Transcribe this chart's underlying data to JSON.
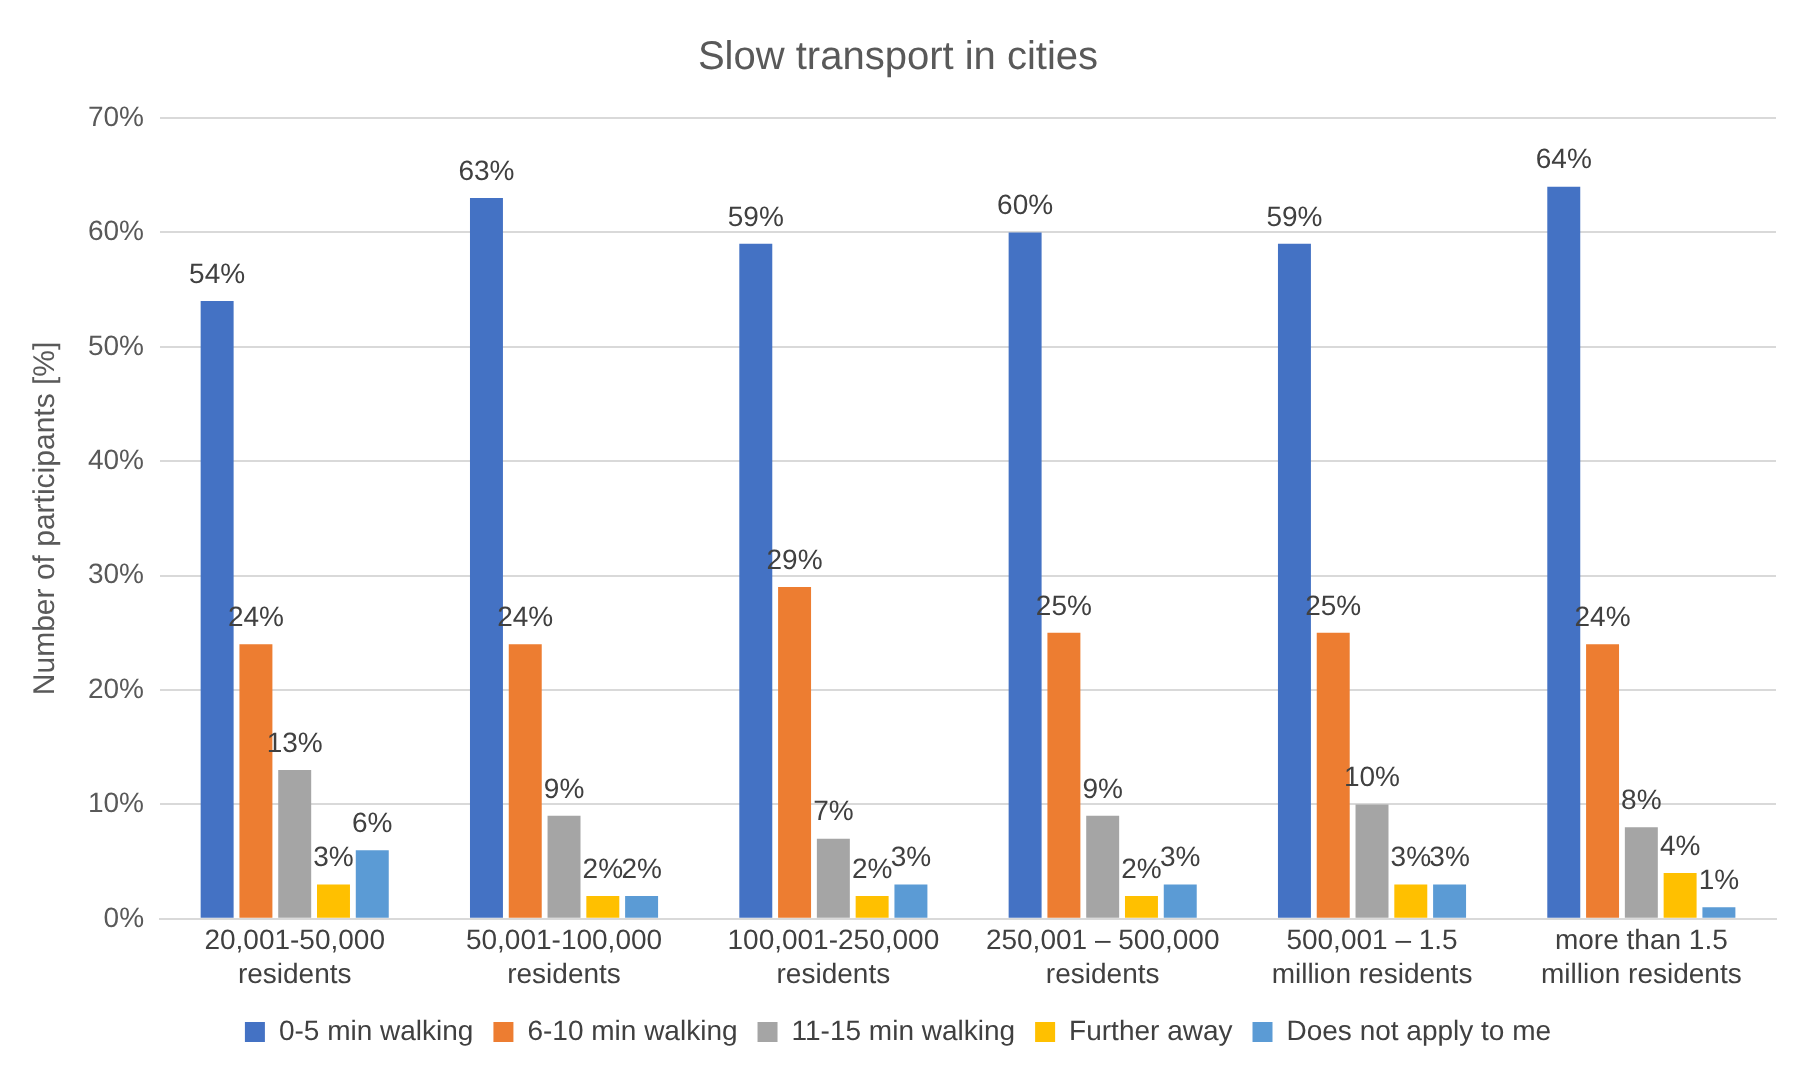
{
  "chart_data": {
    "type": "bar",
    "title": "Slow transport in cities",
    "ylabel": "Number of participants [%]",
    "categories": [
      "20,001-50,000 residents",
      "50,001-100,000 residents",
      "100,001-250,000 residents",
      "250,001 – 500,000 residents",
      "500,001 – 1.5 million residents",
      "more than 1.5 million residents"
    ],
    "series": [
      {
        "name": "0-5 min walking",
        "color": "#4472c4",
        "values": [
          54,
          63,
          59,
          60,
          59,
          64
        ],
        "value_labels": [
          "54%",
          "63%",
          "59%",
          "60%",
          "59%",
          "64%"
        ]
      },
      {
        "name": "6-10 min walking",
        "color": "#ed7d31",
        "values": [
          24,
          24,
          29,
          25,
          25,
          24
        ],
        "value_labels": [
          "24%",
          "24%",
          "29%",
          "25%",
          "25%",
          "24%"
        ]
      },
      {
        "name": "11-15 min walking",
        "color": "#a5a5a5",
        "values": [
          13,
          9,
          7,
          9,
          10,
          8
        ],
        "value_labels": [
          "13%",
          "9%",
          "7%",
          "9%",
          "10%",
          "8%"
        ]
      },
      {
        "name": "Further away",
        "color": "#ffc000",
        "values": [
          3,
          2,
          2,
          2,
          3,
          4
        ],
        "value_labels": [
          "3%",
          "2%",
          "2%",
          "2%",
          "3%",
          "4%"
        ]
      },
      {
        "name": "Does not apply to me",
        "color": "#5b9bd5",
        "values": [
          6,
          2,
          3,
          3,
          3,
          1
        ],
        "value_labels": [
          "6%",
          "2%",
          "3%",
          "3%",
          "3%",
          "1%"
        ]
      }
    ],
    "ylim": [
      0,
      70
    ],
    "yticks": [
      {
        "value": 0,
        "label": "0%"
      },
      {
        "value": 10,
        "label": "10%"
      },
      {
        "value": 20,
        "label": "20%"
      },
      {
        "value": 30,
        "label": "30%"
      },
      {
        "value": 40,
        "label": "40%"
      },
      {
        "value": 50,
        "label": "50%"
      },
      {
        "value": 60,
        "label": "60%"
      },
      {
        "value": 70,
        "label": "70%"
      }
    ],
    "grid": "y",
    "legend": "bottom"
  }
}
